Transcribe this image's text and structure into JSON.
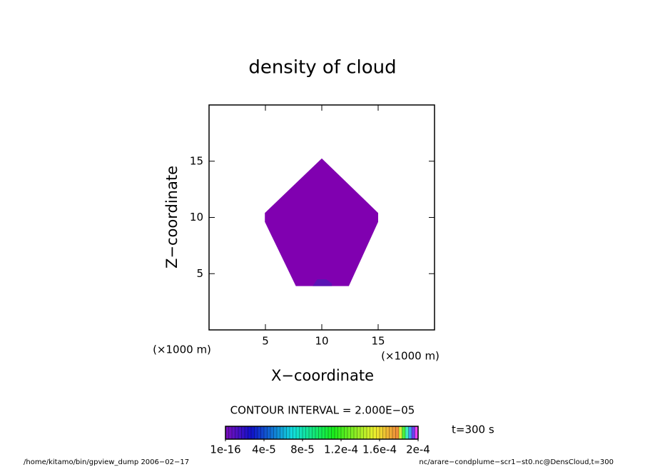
{
  "chart_data": {
    "type": "contour",
    "title": "density of cloud",
    "x_label": "X−coordinate",
    "y_label": "Z−coordinate",
    "x_unit": "(×1000 m)",
    "y_unit": "(×1000 m)",
    "xlim": [
      0,
      20
    ],
    "ylim": [
      0,
      20
    ],
    "xticks": [
      5,
      10,
      15
    ],
    "yticks": [
      5,
      10,
      15
    ],
    "regions": [
      {
        "color": "#8000b0",
        "x": [
          10,
          15,
          15,
          12.4,
          7.7,
          4.95,
          4.95
        ],
        "y": [
          15.25,
          10.4,
          9.6,
          3.9,
          3.9,
          9.6,
          10.4
        ]
      },
      {
        "color": "#5a14b4",
        "x": [
          9.2,
          9.6,
          10.4,
          10.9,
          10.9,
          9.2
        ],
        "y": [
          3.9,
          4.5,
          4.5,
          4.1,
          3.9,
          3.9
        ]
      }
    ],
    "contour_interval": "CONTOUR INTERVAL = 2.000E−05",
    "colorbar": {
      "lim": [
        0,
        0.0002
      ],
      "ticks": [
        {
          "value": 1e-16,
          "label": "1e-16"
        },
        {
          "value": 4e-05,
          "label": "4e-5"
        },
        {
          "value": 8e-05,
          "label": "8e-5"
        },
        {
          "value": 0.00012,
          "label": "1.2e-4"
        },
        {
          "value": 0.00016,
          "label": "1.6e-4"
        },
        {
          "value": 0.0002,
          "label": "2e-4"
        }
      ]
    },
    "time_label": "t=300 s",
    "footer_left": "/home/kitamo/bin/gpview_dump  2006−02−17",
    "footer_right": "nc/arare−condplume−scr1−st0.nc@DensCloud,t=300"
  }
}
